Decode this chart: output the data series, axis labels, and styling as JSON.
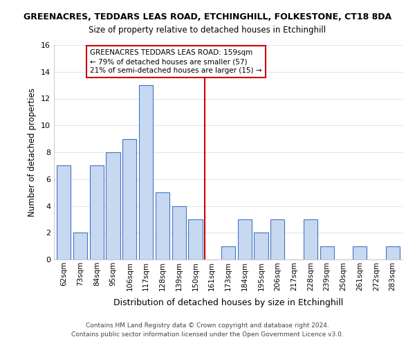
{
  "title": "GREENACRES, TEDDARS LEAS ROAD, ETCHINGHILL, FOLKESTONE, CT18 8DA",
  "subtitle": "Size of property relative to detached houses in Etchinghill",
  "xlabel": "Distribution of detached houses by size in Etchinghill",
  "ylabel": "Number of detached properties",
  "bar_labels": [
    "62sqm",
    "73sqm",
    "84sqm",
    "95sqm",
    "106sqm",
    "117sqm",
    "128sqm",
    "139sqm",
    "150sqm",
    "161sqm",
    "173sqm",
    "184sqm",
    "195sqm",
    "206sqm",
    "217sqm",
    "228sqm",
    "239sqm",
    "250sqm",
    "261sqm",
    "272sqm",
    "283sqm"
  ],
  "bar_values": [
    7,
    2,
    7,
    8,
    9,
    13,
    5,
    4,
    3,
    0,
    1,
    3,
    2,
    3,
    0,
    3,
    1,
    0,
    1,
    0,
    1
  ],
  "bar_color": "#c6d9f1",
  "bar_edge_color": "#4472c4",
  "ylim": [
    0,
    16
  ],
  "yticks": [
    0,
    2,
    4,
    6,
    8,
    10,
    12,
    14,
    16
  ],
  "marker_line_x_label": "161sqm",
  "marker_line_color": "#cc0000",
  "annotation_text": "GREENACRES TEDDARS LEAS ROAD: 159sqm\n← 79% of detached houses are smaller (57)\n21% of semi-detached houses are larger (15) →",
  "footer_line1": "Contains HM Land Registry data © Crown copyright and database right 2024.",
  "footer_line2": "Contains public sector information licensed under the Open Government Licence v3.0.",
  "background_color": "#ffffff",
  "grid_color": "#dde8f0"
}
